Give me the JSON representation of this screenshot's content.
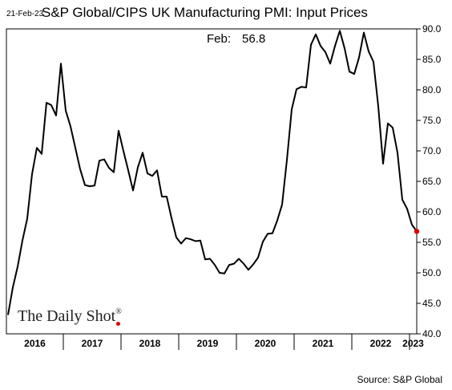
{
  "header": {
    "date_stamp": "21-Feb-23",
    "title": "S&P Global/CIPS UK Manufacturing PMI: Input Prices"
  },
  "annotation": {
    "label": "Feb:",
    "value": "56.8"
  },
  "branding": {
    "name": "The Daily Shot",
    "reg": "®"
  },
  "source": "Source: S&P Global",
  "chart_data": {
    "type": "line",
    "title": "S&P Global/CIPS UK Manufacturing PMI: Input Prices",
    "xlabel": "",
    "ylabel": "",
    "ylim": [
      40,
      90
    ],
    "y_ticks": [
      "40.0",
      "45.0",
      "50.0",
      "55.0",
      "60.0",
      "65.0",
      "70.0",
      "75.0",
      "80.0",
      "85.0",
      "90.0"
    ],
    "y_axis_side": "right",
    "x_tick_labels": [
      "2016",
      "2017",
      "2018",
      "2019",
      "2020",
      "2021",
      "2022",
      "2023"
    ],
    "x_range": [
      "2016-01",
      "2023-02"
    ],
    "grid": false,
    "line_color": "#000000",
    "last_point_color": "#e00000",
    "series": [
      {
        "x": [
          "2016-01",
          "2016-02",
          "2016-03",
          "2016-04",
          "2016-05",
          "2016-06",
          "2016-07",
          "2016-08",
          "2016-09",
          "2016-10",
          "2016-11",
          "2016-12",
          "2017-01",
          "2017-02",
          "2017-03",
          "2017-04",
          "2017-05",
          "2017-06",
          "2017-07",
          "2017-08",
          "2017-09",
          "2017-10",
          "2017-11",
          "2017-12",
          "2018-01",
          "2018-02",
          "2018-03",
          "2018-04",
          "2018-05",
          "2018-06",
          "2018-07",
          "2018-08",
          "2018-09",
          "2018-10",
          "2018-11",
          "2018-12",
          "2019-01",
          "2019-02",
          "2019-03",
          "2019-04",
          "2019-05",
          "2019-06",
          "2019-07",
          "2019-08",
          "2019-09",
          "2019-10",
          "2019-11",
          "2019-12",
          "2020-01",
          "2020-02",
          "2020-03",
          "2020-04",
          "2020-05",
          "2020-06",
          "2020-07",
          "2020-08",
          "2020-09",
          "2020-10",
          "2020-11",
          "2020-12",
          "2021-01",
          "2021-02",
          "2021-03",
          "2021-04",
          "2021-05",
          "2021-06",
          "2021-07",
          "2021-08",
          "2021-09",
          "2021-10",
          "2021-11",
          "2021-12",
          "2022-01",
          "2022-02",
          "2022-03",
          "2022-04",
          "2022-05",
          "2022-06",
          "2022-07",
          "2022-08",
          "2022-09",
          "2022-10",
          "2022-11",
          "2022-12",
          "2023-01",
          "2023-02"
        ],
        "values": [
          43.1,
          47.6,
          51.0,
          55.3,
          58.9,
          66.2,
          70.5,
          69.5,
          77.9,
          77.5,
          75.8,
          84.3,
          76.6,
          74.0,
          70.5,
          67.0,
          64.4,
          64.2,
          64.3,
          68.4,
          68.6,
          67.2,
          66.5,
          73.3,
          70.0,
          66.8,
          63.5,
          67.3,
          69.7,
          66.3,
          65.9,
          66.8,
          62.5,
          62.5,
          59.0,
          55.8,
          54.8,
          55.7,
          55.5,
          55.2,
          55.3,
          52.2,
          52.3,
          51.3,
          50.0,
          49.9,
          51.3,
          51.5,
          52.3,
          51.5,
          50.5,
          51.4,
          52.5,
          55.1,
          56.4,
          56.5,
          58.6,
          61.2,
          68.5,
          76.8,
          80.1,
          80.5,
          80.4,
          87.4,
          89.1,
          87.2,
          86.2,
          84.3,
          87.2,
          89.7,
          86.8,
          83.0,
          82.6,
          85.3,
          89.4,
          86.3,
          84.6,
          77.3,
          67.9,
          74.5,
          73.8,
          69.7,
          62.0,
          60.5,
          57.9,
          56.8
        ]
      }
    ]
  }
}
